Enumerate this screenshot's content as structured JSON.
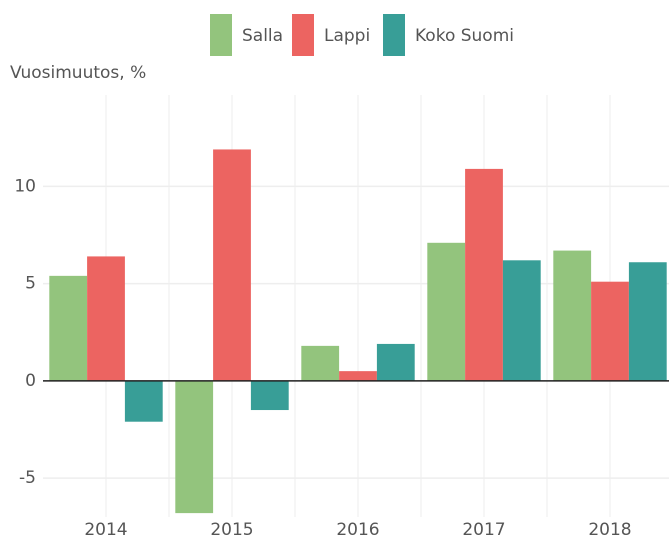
{
  "chart_data": {
    "type": "bar",
    "y_label": "Vuosimuutos, %",
    "categories": [
      "2014",
      "2015",
      "2016",
      "2017",
      "2018"
    ],
    "series": [
      {
        "name": "Salla",
        "color": "#93c47d",
        "values": [
          5.4,
          -6.8,
          1.8,
          7.1,
          6.7
        ]
      },
      {
        "name": "Lappi",
        "color": "#ec6461",
        "values": [
          6.4,
          11.9,
          0.5,
          10.9,
          5.1
        ]
      },
      {
        "name": "Koko Suomi",
        "color": "#389e97",
        "values": [
          -2.1,
          -1.5,
          1.9,
          6.2,
          6.1
        ]
      }
    ],
    "ylim": [
      -7,
      14.7
    ],
    "yticks": [
      -5,
      0,
      5,
      10
    ],
    "grid": true,
    "legend": "top"
  }
}
